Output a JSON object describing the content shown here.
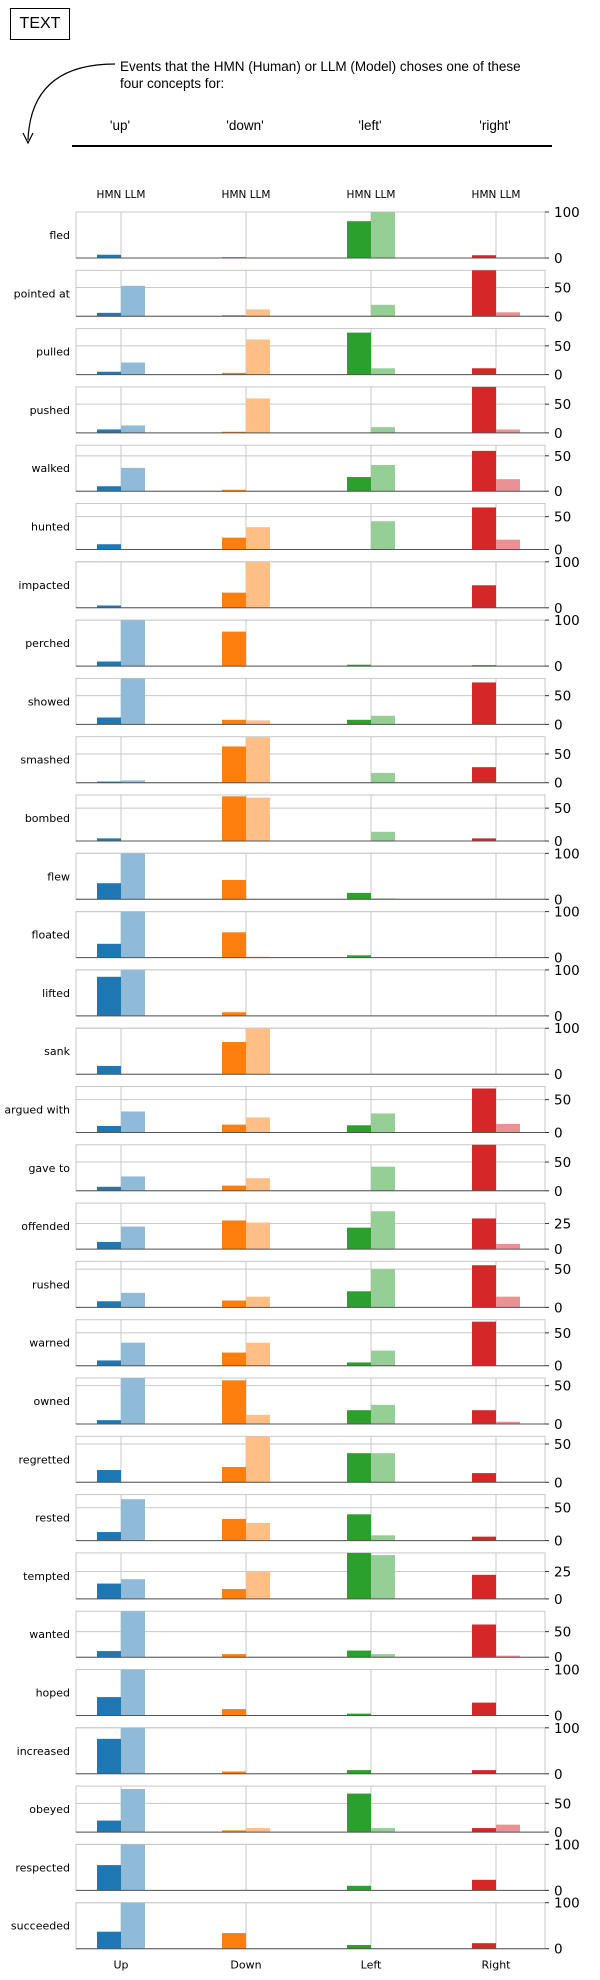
{
  "header": {
    "box_label": "TEXT",
    "caption": "Events that the HMN (Human) or LLM (Model) choses one of these four concepts for:",
    "concepts": [
      "'up'",
      "'down'",
      "'left'",
      "'right'"
    ]
  },
  "chart_data": {
    "type": "bar",
    "group_header": "HMN LLM",
    "groups": [
      "Up",
      "Down",
      "Left",
      "Right"
    ],
    "series_sources": [
      "HMN",
      "LLM"
    ],
    "colors": {
      "up": [
        "#1f77b4",
        "#8fbbd9"
      ],
      "down": [
        "#ff7f0e",
        "#ffbf86"
      ],
      "left": [
        "#2ca02c",
        "#95cf95"
      ],
      "right": [
        "#d62728",
        "#ea9293"
      ]
    },
    "grid": true,
    "rows": [
      {
        "label": "fled",
        "ymax": 100,
        "ticks": [
          0,
          100
        ],
        "values": {
          "up": [
            7,
            0
          ],
          "down": [
            2,
            0
          ],
          "left": [
            80,
            100
          ],
          "right": [
            6,
            0
          ]
        }
      },
      {
        "label": "pointed at",
        "ymax": 80,
        "ticks": [
          0,
          50
        ],
        "values": {
          "up": [
            6,
            53
          ],
          "down": [
            2,
            12
          ],
          "left": [
            0,
            20
          ],
          "right": [
            82,
            7
          ]
        }
      },
      {
        "label": "pulled",
        "ymax": 80,
        "ticks": [
          0,
          50
        ],
        "values": {
          "up": [
            5,
            21
          ],
          "down": [
            3,
            61
          ],
          "left": [
            73,
            11
          ],
          "right": [
            11,
            0
          ]
        }
      },
      {
        "label": "pushed",
        "ymax": 80,
        "ticks": [
          0,
          50
        ],
        "values": {
          "up": [
            6,
            13
          ],
          "down": [
            2,
            60
          ],
          "left": [
            0,
            10
          ],
          "right": [
            80,
            6
          ]
        }
      },
      {
        "label": "walked",
        "ymax": 65,
        "ticks": [
          0,
          50
        ],
        "values": {
          "up": [
            7,
            33
          ],
          "down": [
            2,
            0
          ],
          "left": [
            20,
            37
          ],
          "right": [
            57,
            17
          ]
        }
      },
      {
        "label": "hunted",
        "ymax": 70,
        "ticks": [
          0,
          50
        ],
        "values": {
          "up": [
            8,
            0
          ],
          "down": [
            18,
            34
          ],
          "left": [
            0,
            43
          ],
          "right": [
            64,
            15
          ]
        }
      },
      {
        "label": "impacted",
        "ymax": 100,
        "ticks": [
          0,
          100
        ],
        "values": {
          "up": [
            5,
            0
          ],
          "down": [
            33,
            100
          ],
          "left": [
            0,
            0
          ],
          "right": [
            49,
            0
          ]
        }
      },
      {
        "label": "perched",
        "ymax": 100,
        "ticks": [
          0,
          100
        ],
        "values": {
          "up": [
            10,
            100
          ],
          "down": [
            75,
            0
          ],
          "left": [
            3,
            0
          ],
          "right": [
            2,
            0
          ]
        }
      },
      {
        "label": "showed",
        "ymax": 80,
        "ticks": [
          0,
          50
        ],
        "values": {
          "up": [
            12,
            80
          ],
          "down": [
            8,
            7
          ],
          "left": [
            8,
            15
          ],
          "right": [
            73,
            0
          ]
        }
      },
      {
        "label": "smashed",
        "ymax": 80,
        "ticks": [
          0,
          50
        ],
        "values": {
          "up": [
            2,
            4
          ],
          "down": [
            63,
            79
          ],
          "left": [
            0,
            17
          ],
          "right": [
            27,
            0
          ]
        }
      },
      {
        "label": "bombed",
        "ymax": 70,
        "ticks": [
          0,
          50
        ],
        "values": {
          "up": [
            4,
            0
          ],
          "down": [
            68,
            66
          ],
          "left": [
            0,
            14
          ],
          "right": [
            4,
            0
          ]
        }
      },
      {
        "label": "flew",
        "ymax": 100,
        "ticks": [
          0,
          100
        ],
        "values": {
          "up": [
            35,
            100
          ],
          "down": [
            42,
            0
          ],
          "left": [
            14,
            2
          ],
          "right": [
            0,
            0
          ]
        }
      },
      {
        "label": "floated",
        "ymax": 100,
        "ticks": [
          0,
          100
        ],
        "values": {
          "up": [
            30,
            100
          ],
          "down": [
            55,
            2
          ],
          "left": [
            5,
            0
          ],
          "right": [
            0,
            0
          ]
        }
      },
      {
        "label": "lifted",
        "ymax": 100,
        "ticks": [
          0,
          100
        ],
        "values": {
          "up": [
            85,
            100
          ],
          "down": [
            8,
            0
          ],
          "left": [
            0,
            0
          ],
          "right": [
            0,
            0
          ]
        }
      },
      {
        "label": "sank",
        "ymax": 100,
        "ticks": [
          0,
          100
        ],
        "values": {
          "up": [
            18,
            0
          ],
          "down": [
            70,
            100
          ],
          "left": [
            0,
            0
          ],
          "right": [
            0,
            0
          ]
        }
      },
      {
        "label": "argued with",
        "ymax": 70,
        "ticks": [
          0,
          50
        ],
        "values": {
          "up": [
            10,
            32
          ],
          "down": [
            12,
            23
          ],
          "left": [
            11,
            29
          ],
          "right": [
            67,
            13
          ]
        }
      },
      {
        "label": "gave to",
        "ymax": 80,
        "ticks": [
          0,
          50
        ],
        "values": {
          "up": [
            7,
            25
          ],
          "down": [
            9,
            22
          ],
          "left": [
            0,
            42
          ],
          "right": [
            82,
            0
          ]
        }
      },
      {
        "label": "offended",
        "ymax": 45,
        "ticks": [
          0,
          25
        ],
        "values": {
          "up": [
            7,
            22
          ],
          "down": [
            28,
            26
          ],
          "left": [
            21,
            37
          ],
          "right": [
            30,
            5
          ]
        }
      },
      {
        "label": "rushed",
        "ymax": 60,
        "ticks": [
          0,
          50
        ],
        "values": {
          "up": [
            8,
            19
          ],
          "down": [
            9,
            14
          ],
          "left": [
            21,
            50
          ],
          "right": [
            55,
            14
          ]
        }
      },
      {
        "label": "warned",
        "ymax": 70,
        "ticks": [
          0,
          50
        ],
        "values": {
          "up": [
            8,
            35
          ],
          "down": [
            20,
            35
          ],
          "left": [
            5,
            23
          ],
          "right": [
            67,
            0
          ]
        }
      },
      {
        "label": "owned",
        "ymax": 60,
        "ticks": [
          0,
          50
        ],
        "values": {
          "up": [
            5,
            60
          ],
          "down": [
            57,
            12
          ],
          "left": [
            18,
            25
          ],
          "right": [
            18,
            3
          ]
        }
      },
      {
        "label": "regretted",
        "ymax": 60,
        "ticks": [
          0,
          50
        ],
        "values": {
          "up": [
            16,
            0
          ],
          "down": [
            20,
            60
          ],
          "left": [
            38,
            38
          ],
          "right": [
            12,
            0
          ]
        }
      },
      {
        "label": "rested",
        "ymax": 70,
        "ticks": [
          0,
          50
        ],
        "values": {
          "up": [
            13,
            63
          ],
          "down": [
            33,
            27
          ],
          "left": [
            40,
            8
          ],
          "right": [
            6,
            0
          ]
        }
      },
      {
        "label": "tempted",
        "ymax": 42,
        "ticks": [
          0,
          25
        ],
        "values": {
          "up": [
            14,
            18
          ],
          "down": [
            9,
            25
          ],
          "left": [
            42,
            40
          ],
          "right": [
            22,
            0
          ]
        }
      },
      {
        "label": "wanted",
        "ymax": 90,
        "ticks": [
          0,
          50
        ],
        "values": {
          "up": [
            12,
            90
          ],
          "down": [
            6,
            0
          ],
          "left": [
            13,
            6
          ],
          "right": [
            64,
            3
          ]
        }
      },
      {
        "label": "hoped",
        "ymax": 100,
        "ticks": [
          0,
          100
        ],
        "values": {
          "up": [
            40,
            100
          ],
          "down": [
            14,
            0
          ],
          "left": [
            4,
            0
          ],
          "right": [
            28,
            0
          ]
        }
      },
      {
        "label": "increased",
        "ymax": 100,
        "ticks": [
          0,
          100
        ],
        "values": {
          "up": [
            76,
            100
          ],
          "down": [
            5,
            0
          ],
          "left": [
            8,
            0
          ],
          "right": [
            8,
            0
          ]
        }
      },
      {
        "label": "obeyed",
        "ymax": 80,
        "ticks": [
          0,
          50
        ],
        "values": {
          "up": [
            20,
            75
          ],
          "down": [
            3,
            7
          ],
          "left": [
            67,
            7
          ],
          "right": [
            7,
            13
          ]
        }
      },
      {
        "label": "respected",
        "ymax": 100,
        "ticks": [
          0,
          100
        ],
        "values": {
          "up": [
            55,
            100
          ],
          "down": [
            0,
            0
          ],
          "left": [
            10,
            0
          ],
          "right": [
            23,
            0
          ]
        }
      },
      {
        "label": "succeeded",
        "ymax": 100,
        "ticks": [
          0,
          100
        ],
        "values": {
          "up": [
            37,
            100
          ],
          "down": [
            34,
            0
          ],
          "left": [
            8,
            0
          ],
          "right": [
            12,
            0
          ]
        }
      }
    ]
  }
}
